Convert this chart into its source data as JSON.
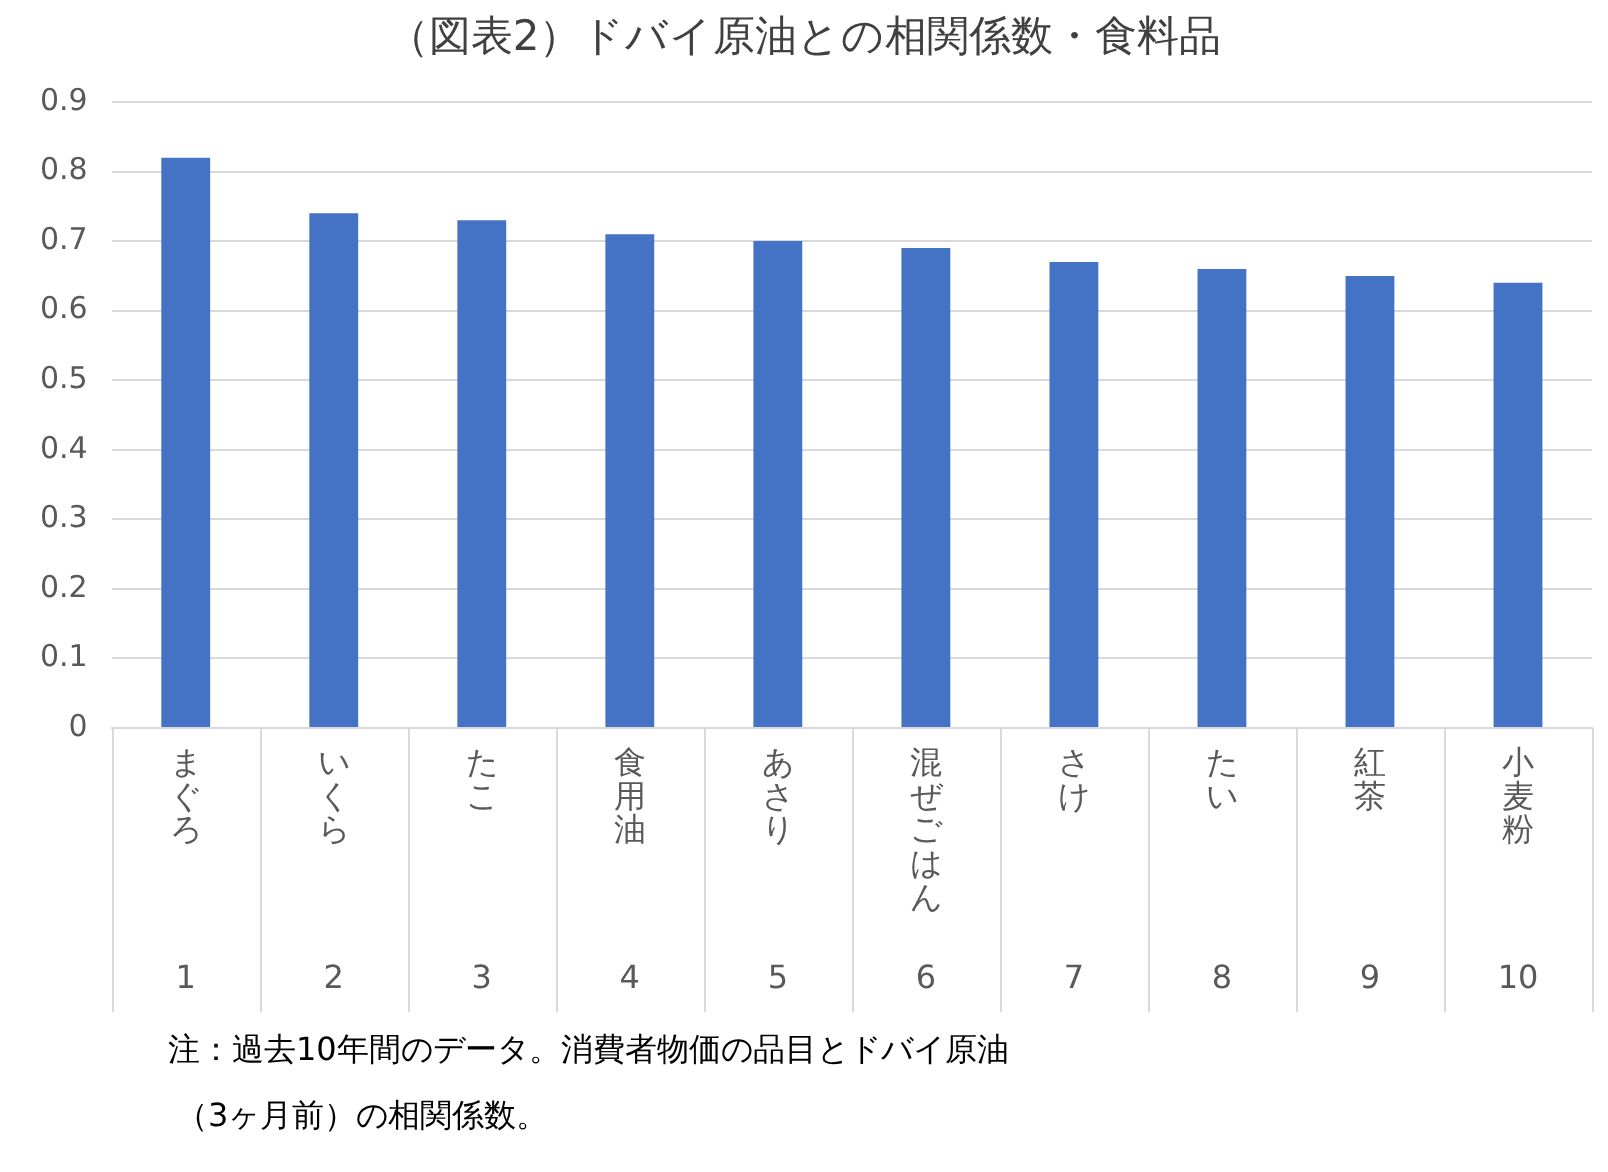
{
  "chart_data": {
    "type": "bar",
    "title": "（図表2）ドバイ原油との相関係数・食料品",
    "categories": [
      "まぐろ",
      "いくら",
      "たこ",
      "食用油",
      "あさり",
      "混ぜごはん",
      "さけ",
      "たい",
      "紅茶",
      "小麦粉"
    ],
    "values": [
      0.82,
      0.74,
      0.73,
      0.71,
      0.7,
      0.69,
      0.67,
      0.66,
      0.65,
      0.64
    ],
    "color": "#4472c4",
    "ylim": [
      0,
      0.9
    ],
    "yticks": [
      0,
      0.1,
      0.2,
      0.3,
      0.4,
      0.5,
      0.6,
      0.7,
      0.8,
      0.9
    ],
    "grid": "y",
    "legend": false,
    "annotations": [
      "1",
      "2",
      "3",
      "4",
      "5",
      "6",
      "7",
      "8",
      "9",
      "10",
      "注：過去10年間のデータ。消費者物価の品目とドバイ原油",
      "（3ヶ月前）の相関係数。"
    ]
  }
}
